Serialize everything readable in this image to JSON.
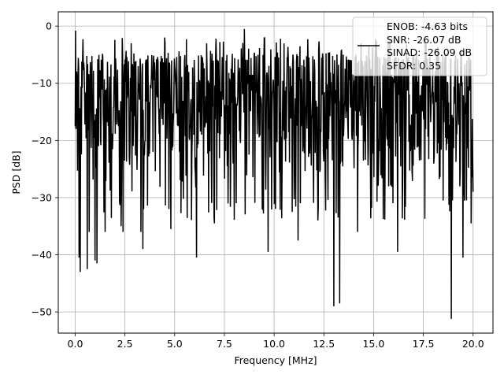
{
  "chart_data": {
    "type": "line",
    "title": "",
    "xlabel": "Frequency [MHz]",
    "ylabel": "PSD [dB]",
    "xlim": [
      -0.85,
      21.0
    ],
    "ylim": [
      -53.7,
      2.5
    ],
    "grid": true,
    "xticks": [
      0.0,
      2.5,
      5.0,
      7.5,
      10.0,
      12.5,
      15.0,
      17.5,
      20.0
    ],
    "xtick_labels": [
      "0.0",
      "2.5",
      "5.0",
      "7.5",
      "10.0",
      "12.5",
      "15.0",
      "17.5",
      "20.0"
    ],
    "yticks": [
      0,
      -10,
      -20,
      -30,
      -40,
      -50
    ],
    "ytick_labels": [
      "0",
      "−10",
      "−20",
      "−30",
      "−40",
      "−50"
    ],
    "line_color": "#000000",
    "legend": {
      "placement": "upper right",
      "entries": [
        "ENOB: -4.63 bits",
        "SNR: -26.07 dB",
        "SINAD: -26.09 dB",
        "SFDR: 0.35"
      ]
    },
    "series": [
      {
        "x_range": [
          0.0,
          20.0
        ],
        "num_points": 1024,
        "typical_range": [
          -30,
          -5
        ],
        "peaks": [
          {
            "x": 0.0,
            "y": -0.8
          },
          {
            "x": 4.5,
            "y": -2.0
          },
          {
            "x": 7.0,
            "y": -2.0
          },
          {
            "x": 8.5,
            "y": -0.5
          },
          {
            "x": 11.2,
            "y": -1.5
          }
        ],
        "dips": [
          {
            "x": 0.2,
            "y": -40.5
          },
          {
            "x": 0.25,
            "y": -43.0
          },
          {
            "x": 0.6,
            "y": -42.5
          },
          {
            "x": 0.7,
            "y": -36.0
          },
          {
            "x": 1.0,
            "y": -41.0
          },
          {
            "x": 1.1,
            "y": -41.5
          },
          {
            "x": 1.5,
            "y": -36.0
          },
          {
            "x": 2.3,
            "y": -35.0
          },
          {
            "x": 2.4,
            "y": -36.0
          },
          {
            "x": 3.3,
            "y": -36.0
          },
          {
            "x": 3.4,
            "y": -39.0
          },
          {
            "x": 4.8,
            "y": -35.5
          },
          {
            "x": 6.1,
            "y": -40.5
          },
          {
            "x": 7.0,
            "y": -34.5
          },
          {
            "x": 9.7,
            "y": -39.5
          },
          {
            "x": 11.2,
            "y": -37.5
          },
          {
            "x": 12.2,
            "y": -34.0
          },
          {
            "x": 13.0,
            "y": -49.0
          },
          {
            "x": 13.3,
            "y": -48.5
          },
          {
            "x": 14.2,
            "y": -36.0
          },
          {
            "x": 16.2,
            "y": -39.5
          },
          {
            "x": 18.9,
            "y": -51.2
          },
          {
            "x": 19.5,
            "y": -40.5
          },
          {
            "x": 19.9,
            "y": -34.5
          }
        ]
      }
    ]
  }
}
